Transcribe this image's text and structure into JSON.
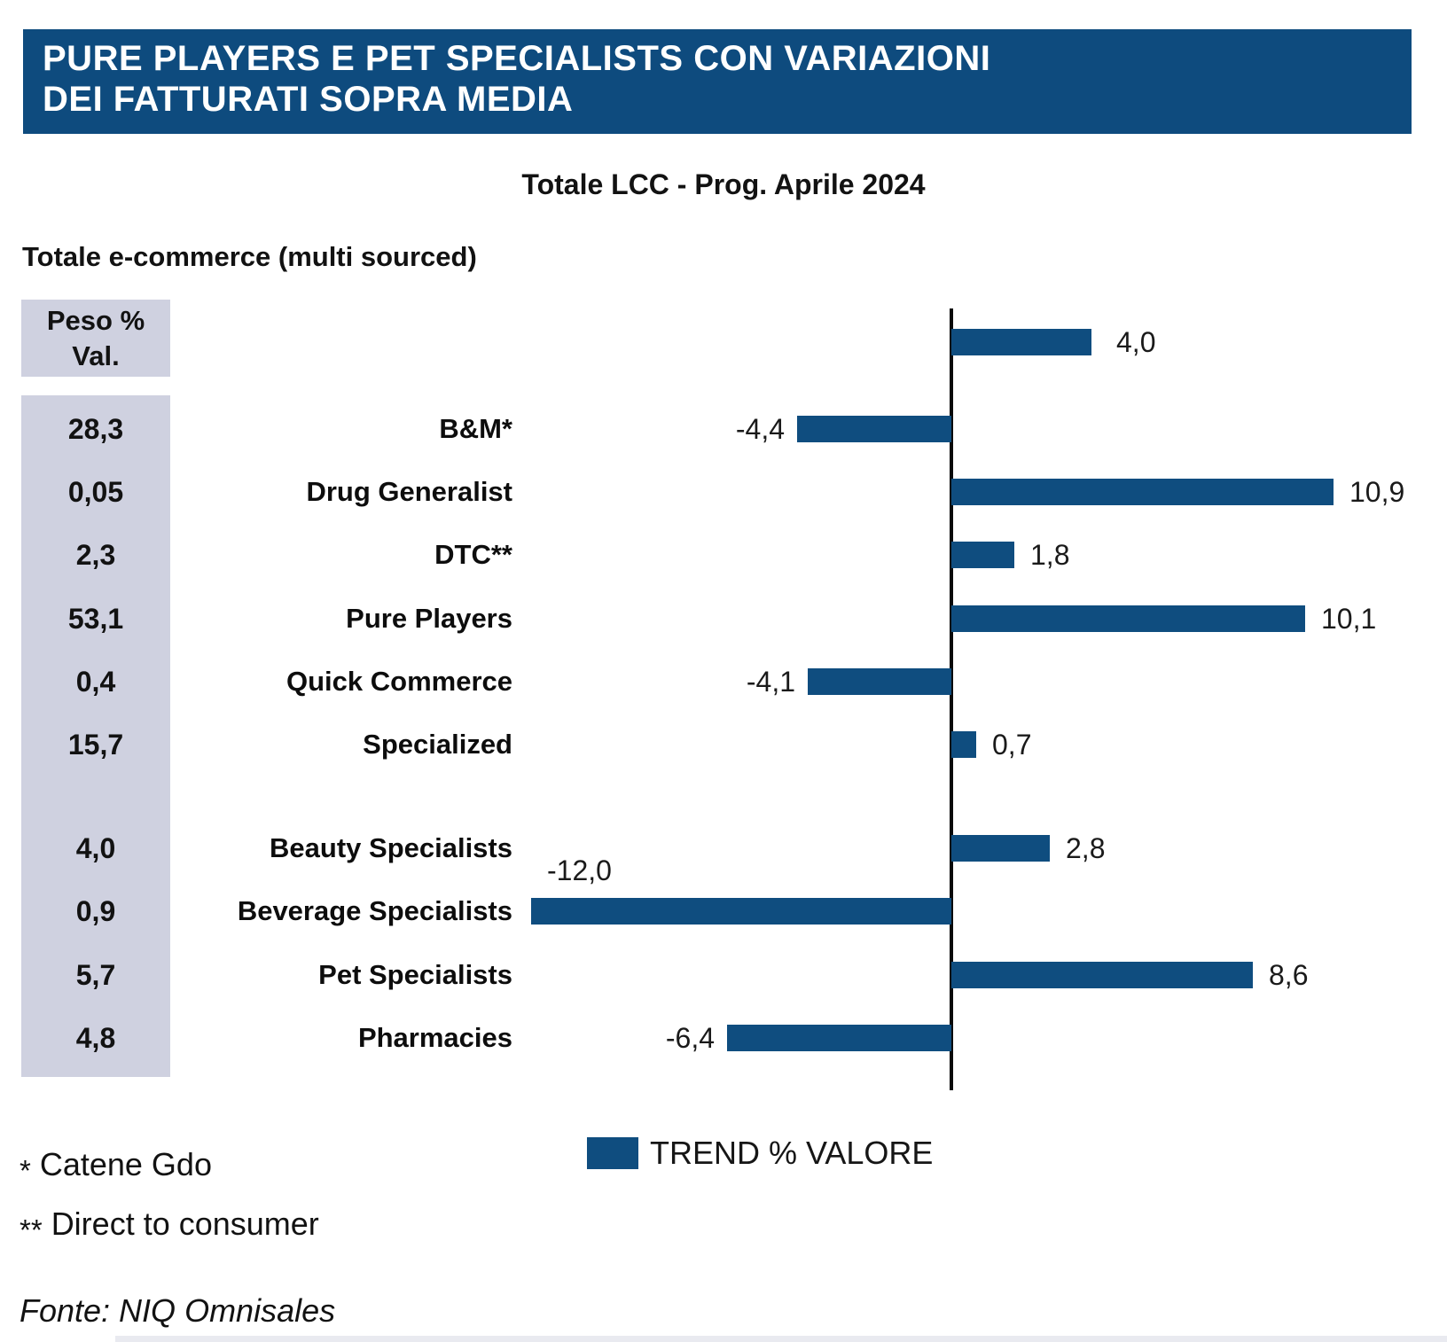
{
  "header": {
    "line1": "PURE PLAYERS E PET SPECIALISTS CON VARIAZIONI",
    "line2": "DEI FATTURATI SOPRA MEDIA"
  },
  "subtitle": "Totale LCC - Prog. Aprile 2024",
  "section_label": "Totale e-commerce (multi sourced)",
  "peso_header": "Peso %\nVal.",
  "legend": {
    "label": "TREND % VALORE"
  },
  "footnotes": [
    {
      "marker": "*",
      "text": "Catene Gdo"
    },
    {
      "marker": "**",
      "text": "Direct to consumer"
    }
  ],
  "source": "Fonte: NIQ Omnisales",
  "colors": {
    "header_bg": "#0E4B7E",
    "bar": "#0F4D7F",
    "peso_bg": "#CFD1E0",
    "axis": "#0A0A0A"
  },
  "chart_data": {
    "type": "bar",
    "orientation": "horizontal",
    "title": "Totale LCC - Prog. Aprile 2024",
    "value_series_name": "TREND % VALORE",
    "weight_column_header": "Peso % Val.",
    "xlim": [
      -12.5,
      11.5
    ],
    "grid": false,
    "zero_axis_line": true,
    "legend_position": "bottom-center",
    "total_row": {
      "label": "Totale e-commerce (multi sourced)",
      "value": 4.0,
      "value_label": "4,0"
    },
    "rows": [
      {
        "label": "B&M*",
        "peso": "28,3",
        "value": -4.4,
        "value_label": "-4,4"
      },
      {
        "label": "Drug Generalist",
        "peso": "0,05",
        "value": 10.9,
        "value_label": "10,9"
      },
      {
        "label": "DTC**",
        "peso": "2,3",
        "value": 1.8,
        "value_label": "1,8"
      },
      {
        "label": "Pure Players",
        "peso": "53,1",
        "value": 10.1,
        "value_label": "10,1"
      },
      {
        "label": "Quick Commerce",
        "peso": "0,4",
        "value": -4.1,
        "value_label": "-4,1"
      },
      {
        "label": "Specialized",
        "peso": "15,7",
        "value": 0.7,
        "value_label": "0,7"
      },
      {
        "label": "Beauty Specialists",
        "peso": "4,0",
        "value": 2.8,
        "value_label": "2,8",
        "group_start": true
      },
      {
        "label": "Beverage Specialists",
        "peso": "0,9",
        "value": -12.0,
        "value_label": "-12,0",
        "value_label_above": true
      },
      {
        "label": "Pet Specialists",
        "peso": "5,7",
        "value": 8.6,
        "value_label": "8,6"
      },
      {
        "label": "Pharmacies",
        "peso": "4,8",
        "value": -6.4,
        "value_label": "-6,4"
      }
    ]
  }
}
